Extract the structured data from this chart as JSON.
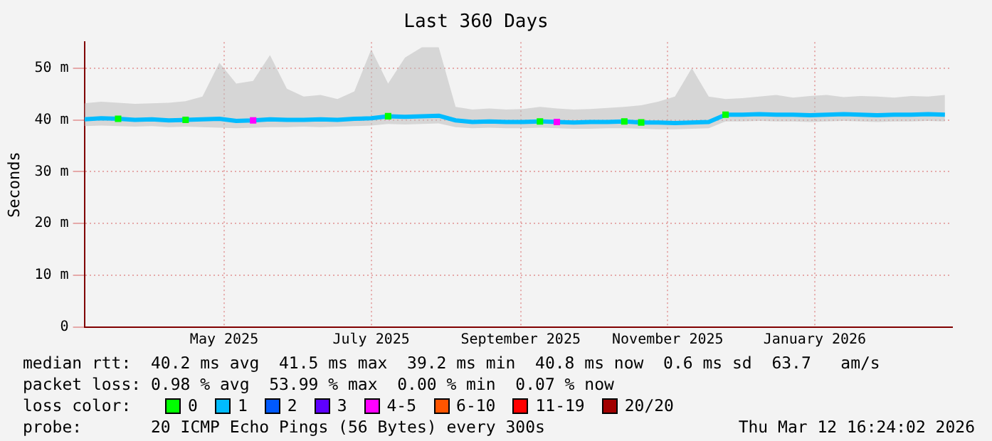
{
  "chart_data": {
    "type": "line",
    "title": "Last 360 Days",
    "ylabel": "Seconds",
    "legend_title": "loss color:",
    "legend": "bottom",
    "grid": true,
    "marker": "square",
    "line_style": "solid",
    "xlim": [
      "2025-03-04",
      "2026-02-27"
    ],
    "xticks": [
      {
        "value": "2025-05-01",
        "label": "May 2025"
      },
      {
        "value": "2025-07-01",
        "label": "July 2025"
      },
      {
        "value": "2025-09-01",
        "label": "September 2025"
      },
      {
        "value": "2025-11-01",
        "label": "November 2025"
      },
      {
        "value": "2026-01-01",
        "label": "January 2026"
      }
    ],
    "ylim": [
      0,
      55
    ],
    "yticks": [
      0,
      {
        "value": 10,
        "label": "10 m"
      },
      {
        "value": 20,
        "label": "20 m"
      },
      {
        "value": 30,
        "label": "30 m"
      },
      {
        "value": 40,
        "label": "40 m"
      },
      {
        "value": 50,
        "label": "50 m"
      }
    ],
    "x": [
      "2025-03-04",
      "2025-03-11",
      "2025-03-18",
      "2025-03-25",
      "2025-04-01",
      "2025-04-08",
      "2025-04-15",
      "2025-04-22",
      "2025-04-29",
      "2025-05-06",
      "2025-05-13",
      "2025-05-20",
      "2025-05-27",
      "2025-06-03",
      "2025-06-10",
      "2025-06-17",
      "2025-06-24",
      "2025-07-01",
      "2025-07-08",
      "2025-07-15",
      "2025-07-22",
      "2025-07-29",
      "2025-08-05",
      "2025-08-12",
      "2025-08-19",
      "2025-08-26",
      "2025-09-02",
      "2025-09-09",
      "2025-09-16",
      "2025-09-23",
      "2025-09-30",
      "2025-10-07",
      "2025-10-14",
      "2025-10-21",
      "2025-10-28",
      "2025-11-04",
      "2025-11-11",
      "2025-11-18",
      "2025-11-25",
      "2025-12-02",
      "2025-12-09",
      "2025-12-16",
      "2025-12-23",
      "2025-12-30",
      "2026-01-06",
      "2026-01-13",
      "2026-01-20",
      "2026-01-27",
      "2026-02-03",
      "2026-02-10",
      "2026-02-17",
      "2026-02-24"
    ],
    "series": [
      {
        "name": "0",
        "color": "#00ff00",
        "type": "scatter",
        "x": [
          "2025-03-18",
          "2025-04-15",
          "2025-07-08",
          "2025-09-09",
          "2025-10-14",
          "2025-10-21",
          "2025-11-25"
        ],
        "values": [
          40.2,
          40.0,
          40.7,
          39.7,
          39.7,
          39.5,
          41.0
        ]
      },
      {
        "name": "1",
        "color": "#00bbff",
        "marker": "none",
        "values": [
          40.1,
          40.3,
          40.2,
          40.0,
          40.1,
          39.9,
          40.0,
          40.1,
          40.2,
          39.8,
          39.9,
          40.1,
          40.0,
          40.0,
          40.1,
          40.0,
          40.2,
          40.3,
          40.7,
          40.6,
          40.7,
          40.8,
          39.9,
          39.6,
          39.7,
          39.6,
          39.6,
          39.7,
          39.6,
          39.5,
          39.6,
          39.6,
          39.7,
          39.5,
          39.5,
          39.4,
          39.5,
          39.6,
          41.0,
          41.0,
          41.1,
          41.0,
          41.0,
          40.9,
          41.0,
          41.1,
          41.0,
          40.9,
          41.0,
          41.0,
          41.1,
          41.0
        ],
        "lower": [
          38.8,
          38.9,
          38.8,
          38.7,
          38.8,
          38.6,
          38.7,
          38.6,
          38.5,
          38.4,
          38.5,
          38.6,
          38.6,
          38.7,
          38.6,
          38.7,
          38.8,
          38.9,
          39.2,
          39.1,
          39.2,
          39.3,
          38.6,
          38.4,
          38.5,
          38.4,
          38.4,
          38.5,
          38.4,
          38.3,
          38.3,
          38.4,
          38.4,
          38.3,
          38.2,
          38.2,
          38.3,
          38.4,
          39.7,
          39.7,
          39.8,
          39.7,
          39.7,
          39.6,
          39.7,
          39.8,
          39.7,
          39.6,
          39.7,
          39.7,
          39.8,
          39.7
        ],
        "upper": [
          43.2,
          43.5,
          43.3,
          43.1,
          43.2,
          43.3,
          43.6,
          44.5,
          51.0,
          47.0,
          47.5,
          52.5,
          46.0,
          44.5,
          44.8,
          44.0,
          45.5,
          53.6,
          47.0,
          52.0,
          54.0,
          54.0,
          42.5,
          42.0,
          42.2,
          42.0,
          42.1,
          42.5,
          42.2,
          42.0,
          42.1,
          42.3,
          42.5,
          42.8,
          43.5,
          44.5,
          50.0,
          44.5,
          44.0,
          44.2,
          44.5,
          44.8,
          44.3,
          44.6,
          44.8,
          44.4,
          44.6,
          44.5,
          44.3,
          44.6,
          44.5,
          44.8
        ]
      },
      {
        "name": "2",
        "color": "#0059ff",
        "type": "scatter",
        "values": [
          null,
          null,
          null,
          null,
          null,
          null,
          null,
          null,
          null,
          null,
          null,
          null,
          null,
          null,
          null,
          null,
          null,
          null,
          null,
          null,
          null,
          null,
          null,
          null,
          null,
          null,
          null,
          null,
          null,
          null,
          null,
          null,
          null,
          null,
          null,
          null,
          null,
          null,
          null,
          null,
          null,
          null,
          null,
          null,
          null,
          null,
          null,
          null,
          null,
          null,
          null,
          null
        ]
      },
      {
        "name": "3",
        "color": "#5e00ff",
        "type": "scatter",
        "values": [
          null,
          null,
          null,
          null,
          null,
          null,
          null,
          null,
          null,
          null,
          null,
          null,
          null,
          null,
          null,
          null,
          null,
          null,
          null,
          null,
          null,
          null,
          null,
          null,
          null,
          null,
          null,
          null,
          null,
          null,
          null,
          null,
          null,
          null,
          null,
          null,
          null,
          null,
          null,
          null,
          null,
          null,
          null,
          null,
          null,
          null,
          null,
          null,
          null,
          null,
          null,
          null
        ]
      },
      {
        "name": "4-5",
        "color": "#ff00ff",
        "type": "scatter",
        "x": [
          "2025-05-13",
          "2025-09-16"
        ],
        "values": [
          39.9,
          39.6
        ]
      },
      {
        "name": "6-10",
        "color": "#ff5500",
        "type": "scatter",
        "values": [
          null,
          null,
          null,
          null,
          null,
          null,
          null,
          null,
          null,
          null,
          null,
          null,
          null,
          null,
          null,
          null,
          null,
          null,
          null,
          null,
          null,
          null,
          null,
          null,
          null,
          null,
          null,
          null,
          null,
          null,
          null,
          null,
          null,
          null,
          null,
          null,
          null,
          null,
          null,
          null,
          null,
          null,
          null,
          null,
          null,
          null,
          null,
          null,
          null,
          null,
          null,
          null
        ]
      },
      {
        "name": "11-19",
        "color": "#ff0000",
        "type": "scatter",
        "values": [
          null,
          null,
          null,
          null,
          null,
          null,
          null,
          null,
          null,
          null,
          null,
          null,
          null,
          null,
          null,
          null,
          null,
          null,
          null,
          null,
          null,
          null,
          null,
          null,
          null,
          null,
          null,
          null,
          null,
          null,
          null,
          null,
          null,
          null,
          null,
          null,
          null,
          null,
          null,
          null,
          null,
          null,
          null,
          null,
          null,
          null,
          null,
          null,
          null,
          null,
          null,
          null
        ]
      },
      {
        "name": "20/20",
        "color": "#a10000",
        "type": "scatter",
        "values": [
          null,
          null,
          null,
          null,
          null,
          null,
          null,
          null,
          null,
          null,
          null,
          null,
          null,
          null,
          null,
          null,
          null,
          null,
          null,
          null,
          null,
          null,
          null,
          null,
          null,
          null,
          null,
          null,
          null,
          null,
          null,
          null,
          null,
          null,
          null,
          null,
          null,
          null,
          null,
          null,
          null,
          null,
          null,
          null,
          null,
          null,
          null,
          null,
          null,
          null,
          null,
          null
        ]
      }
    ],
    "annotations": [
      "median rtt:  40.2 ms avg  41.5 ms max  39.2 ms min  40.8 ms now  0.6 ms sd  63.7   am/s",
      "packet loss: 0.98 % avg  53.99 % max  0.00 % min  0.07 % now",
      "probe:       20 ICMP Echo Pings (56 Bytes) every 300s",
      "Thu Mar 12 16:24:02 2026"
    ]
  }
}
